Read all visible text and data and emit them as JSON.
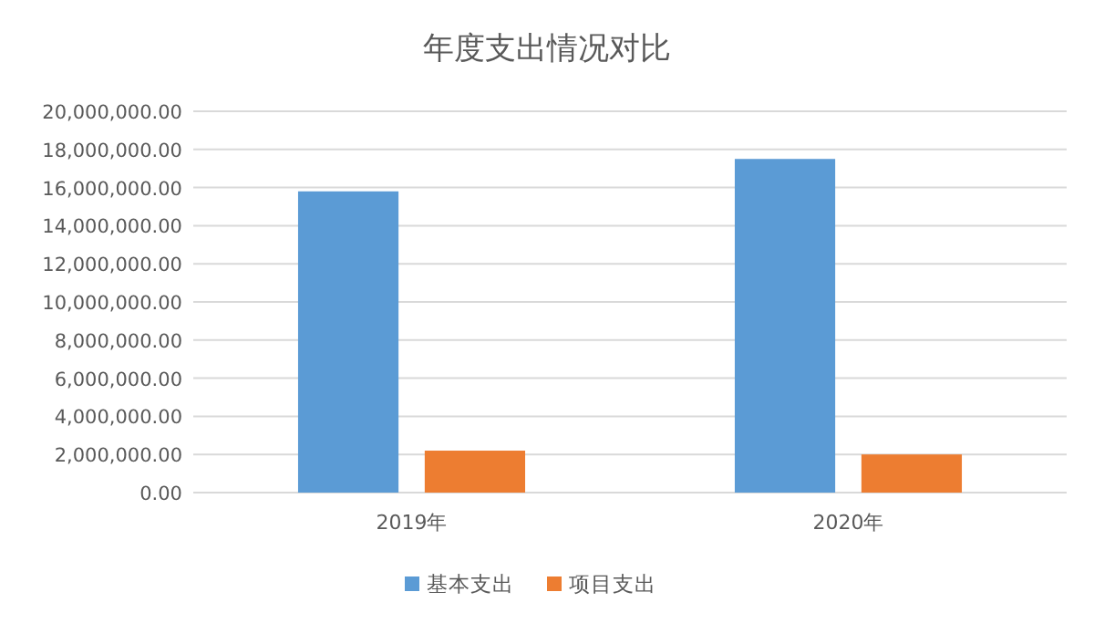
{
  "chart_data": {
    "type": "bar",
    "title": "年度支出情况对比",
    "categories": [
      "2019年",
      "2020年"
    ],
    "series": [
      {
        "name": "基本支出",
        "color": "#5b9bd5",
        "values": [
          15800000,
          17500000
        ]
      },
      {
        "name": "项目支出",
        "color": "#ed7d31",
        "values": [
          2200000,
          2000000
        ]
      }
    ],
    "ylim": [
      0,
      20000000
    ],
    "yticks": [
      {
        "value": 0,
        "label": "0.00"
      },
      {
        "value": 2000000,
        "label": "2,000,000.00"
      },
      {
        "value": 4000000,
        "label": "4,000,000.00"
      },
      {
        "value": 6000000,
        "label": "6,000,000.00"
      },
      {
        "value": 8000000,
        "label": "8,000,000.00"
      },
      {
        "value": 10000000,
        "label": "10,000,000.00"
      },
      {
        "value": 12000000,
        "label": "12,000,000.00"
      },
      {
        "value": 14000000,
        "label": "14,000,000.00"
      },
      {
        "value": 16000000,
        "label": "16,000,000.00"
      },
      {
        "value": 18000000,
        "label": "18,000,000.00"
      },
      {
        "value": 20000000,
        "label": "20,000,000.00"
      }
    ],
    "grid": "y",
    "legend": "bottom"
  }
}
